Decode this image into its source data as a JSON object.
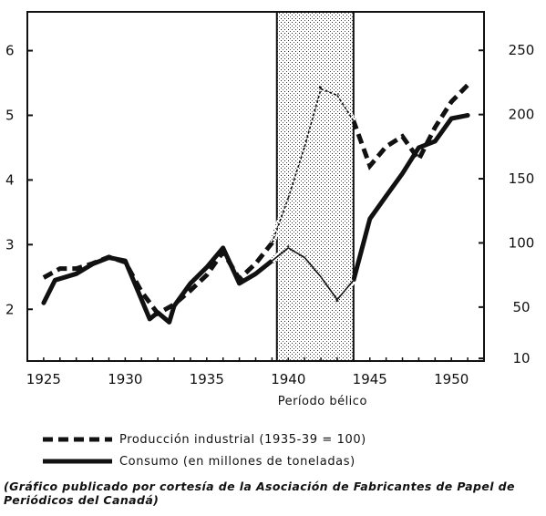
{
  "chart_data": {
    "type": "line",
    "x_ticks": [
      "1925",
      "1930",
      "1935",
      "1940",
      "1945",
      "1950"
    ],
    "xlim": [
      1924,
      1952
    ],
    "y_left_ticks": [
      "2",
      "3",
      "4",
      "5",
      "6"
    ],
    "y_left_lim": [
      1.2,
      6.6
    ],
    "y_right_ticks": [
      "10",
      "50",
      "100",
      "150",
      "200",
      "250"
    ],
    "y_right_lim": [
      8,
      280
    ],
    "shaded_period": {
      "start": 1939.3,
      "end": 1944,
      "label": "Período bélico"
    },
    "series": [
      {
        "name": "Producción industrial (1935-39 = 100)",
        "axis": "right",
        "style": "dashed",
        "points": [
          {
            "x": 1925,
            "y": 73
          },
          {
            "x": 1926,
            "y": 80
          },
          {
            "x": 1927,
            "y": 80
          },
          {
            "x": 1928,
            "y": 84
          },
          {
            "x": 1929,
            "y": 89
          },
          {
            "x": 1930,
            "y": 85
          },
          {
            "x": 1931,
            "y": 62
          },
          {
            "x": 1932,
            "y": 45
          },
          {
            "x": 1933,
            "y": 52
          },
          {
            "x": 1934,
            "y": 63
          },
          {
            "x": 1935,
            "y": 75
          },
          {
            "x": 1936,
            "y": 93
          },
          {
            "x": 1937,
            "y": 72
          },
          {
            "x": 1938,
            "y": 84
          },
          {
            "x": 1939,
            "y": 100
          },
          {
            "x": 1940,
            "y": 135
          },
          {
            "x": 1941,
            "y": 175
          },
          {
            "x": 1942,
            "y": 220
          },
          {
            "x": 1943,
            "y": 215
          },
          {
            "x": 1944,
            "y": 195
          },
          {
            "x": 1945,
            "y": 160
          },
          {
            "x": 1946,
            "y": 175
          },
          {
            "x": 1947,
            "y": 183
          },
          {
            "x": 1948,
            "y": 165
          },
          {
            "x": 1949,
            "y": 190
          },
          {
            "x": 1950,
            "y": 210
          },
          {
            "x": 1951,
            "y": 223
          }
        ]
      },
      {
        "name": "Consumo (en millones de toneladas)",
        "axis": "left",
        "style": "solid",
        "points": [
          {
            "x": 1925,
            "y": 2.1
          },
          {
            "x": 1925.7,
            "y": 2.45
          },
          {
            "x": 1927,
            "y": 2.55
          },
          {
            "x": 1928,
            "y": 2.7
          },
          {
            "x": 1929,
            "y": 2.8
          },
          {
            "x": 1930,
            "y": 2.75
          },
          {
            "x": 1931,
            "y": 2.15
          },
          {
            "x": 1931.5,
            "y": 1.85
          },
          {
            "x": 1932,
            "y": 1.95
          },
          {
            "x": 1932.7,
            "y": 1.8
          },
          {
            "x": 1933,
            "y": 2.05
          },
          {
            "x": 1934,
            "y": 2.4
          },
          {
            "x": 1935,
            "y": 2.65
          },
          {
            "x": 1936,
            "y": 2.95
          },
          {
            "x": 1937,
            "y": 2.4
          },
          {
            "x": 1938,
            "y": 2.55
          },
          {
            "x": 1939,
            "y": 2.75
          },
          {
            "x": 1940,
            "y": 2.95
          },
          {
            "x": 1941,
            "y": 2.8
          },
          {
            "x": 1942,
            "y": 2.5
          },
          {
            "x": 1943,
            "y": 2.15
          },
          {
            "x": 1944,
            "y": 2.45
          },
          {
            "x": 1945,
            "y": 3.4
          },
          {
            "x": 1946,
            "y": 3.75
          },
          {
            "x": 1947,
            "y": 4.1
          },
          {
            "x": 1948,
            "y": 4.5
          },
          {
            "x": 1949,
            "y": 4.6
          },
          {
            "x": 1950,
            "y": 4.95
          },
          {
            "x": 1951,
            "y": 5.0
          }
        ]
      }
    ]
  },
  "legend": {
    "items": [
      {
        "label": "Producción industrial (1935-39 = 100)",
        "style": "dashed"
      },
      {
        "label": "Consumo (en millones de toneladas)",
        "style": "solid"
      }
    ]
  },
  "caption": "(Gráfico publicado por cortesía de la Asociación de Fabricantes de Papel de Periódicos del Canadá)"
}
